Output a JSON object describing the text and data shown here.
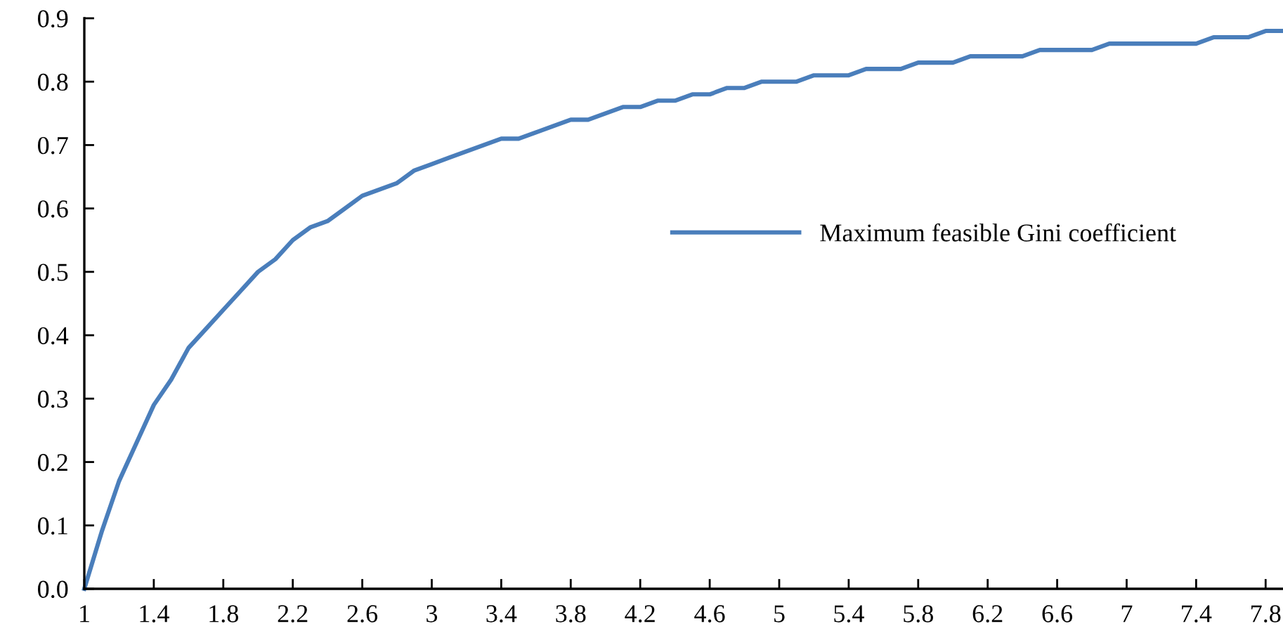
{
  "chart_data": {
    "type": "line",
    "x": [
      1.0,
      1.1,
      1.2,
      1.3,
      1.4,
      1.5,
      1.6,
      1.7,
      1.8,
      1.9,
      2.0,
      2.1,
      2.2,
      2.3,
      2.4,
      2.5,
      2.6,
      2.7,
      2.8,
      2.9,
      3.0,
      3.1,
      3.2,
      3.3,
      3.4,
      3.5,
      3.6,
      3.7,
      3.8,
      3.9,
      4.0,
      4.1,
      4.2,
      4.3,
      4.4,
      4.5,
      4.6,
      4.7,
      4.8,
      4.9,
      5.0,
      5.1,
      5.2,
      5.3,
      5.4,
      5.5,
      5.6,
      5.7,
      5.8,
      5.9,
      6.0,
      6.1,
      6.2,
      6.3,
      6.4,
      6.5,
      6.6,
      6.7,
      6.8,
      6.9,
      7.0,
      7.1,
      7.2,
      7.3,
      7.4,
      7.5,
      7.6,
      7.7,
      7.8,
      7.9
    ],
    "series": [
      {
        "name": "Maximum feasible Gini coefficient",
        "color": "#4a7ebb",
        "values": [
          0,
          0.09,
          0.17,
          0.23,
          0.29,
          0.33,
          0.38,
          0.41,
          0.44,
          0.47,
          0.5,
          0.52,
          0.55,
          0.57,
          0.58,
          0.6,
          0.62,
          0.63,
          0.64,
          0.66,
          0.67,
          0.68,
          0.69,
          0.7,
          0.71,
          0.71,
          0.72,
          0.73,
          0.74,
          0.74,
          0.75,
          0.76,
          0.76,
          0.77,
          0.77,
          0.78,
          0.78,
          0.79,
          0.79,
          0.8,
          0.8,
          0.8,
          0.81,
          0.81,
          0.81,
          0.82,
          0.82,
          0.82,
          0.83,
          0.83,
          0.83,
          0.84,
          0.84,
          0.84,
          0.84,
          0.85,
          0.85,
          0.85,
          0.85,
          0.86,
          0.86,
          0.86,
          0.86,
          0.86,
          0.86,
          0.87,
          0.87,
          0.87,
          0.88,
          0.88
        ]
      }
    ],
    "xlim": [
      1.0,
      7.9
    ],
    "xticks": [
      1,
      1.4,
      1.8,
      2.2,
      2.6,
      3,
      3.4,
      3.8,
      4.2,
      4.6,
      5,
      5.4,
      5.8,
      6.2,
      6.6,
      7,
      7.4,
      7.8
    ],
    "ylim": [
      0,
      0.9
    ],
    "yticks": [
      {
        "value": 0,
        "label": "0.0"
      },
      {
        "value": 0.1,
        "label": "0.1"
      },
      {
        "value": 0.2,
        "label": "0.2"
      },
      {
        "value": 0.3,
        "label": "0.3"
      },
      {
        "value": 0.4,
        "label": "0.4"
      },
      {
        "value": 0.5,
        "label": "0.5"
      },
      {
        "value": 0.6,
        "label": "0.6"
      },
      {
        "value": 0.7,
        "label": "0.7"
      },
      {
        "value": 0.8,
        "label": "0.8"
      },
      {
        "value": 0.9,
        "label": "0.9"
      }
    ],
    "legend": "right",
    "grid": false
  }
}
